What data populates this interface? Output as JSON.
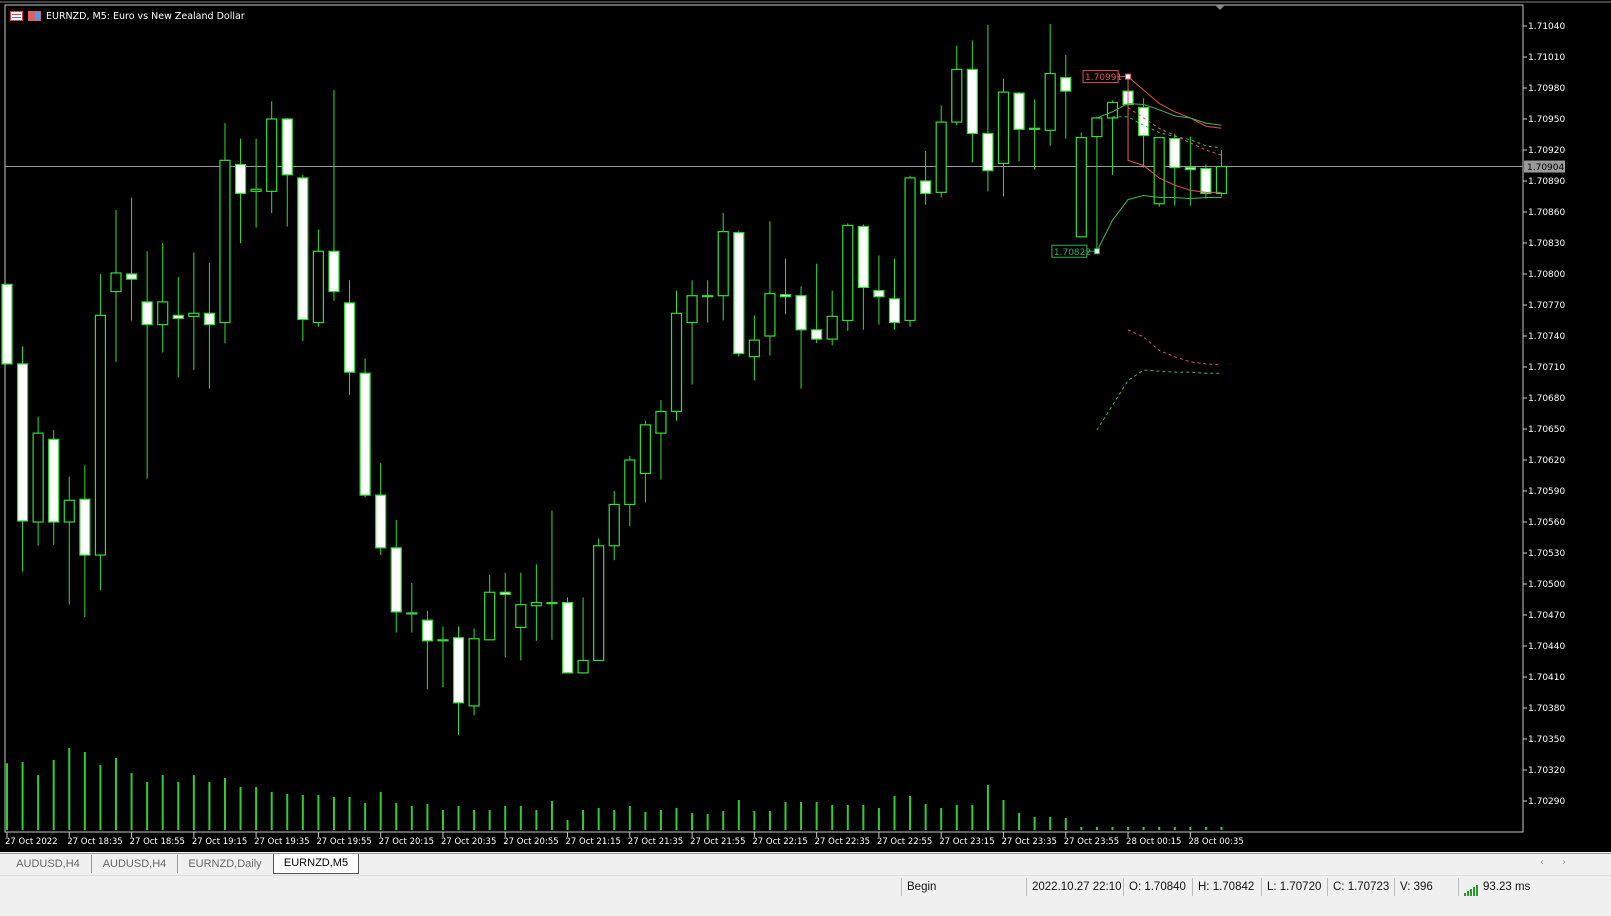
{
  "window": {
    "title": "EURNZD, M5:  Euro vs New Zealand Dollar",
    "icons": [
      "list-icon",
      "chart-icon"
    ]
  },
  "colors": {
    "background": "#000000",
    "candle": "#33dd33",
    "bear_fill": "#ffffff",
    "bull_fill": "#000000",
    "volume": "#33cc33",
    "bid_line": "#9a9a9a",
    "high_marker": "#e05555",
    "low_marker": "#2fae4f",
    "axis_text": "#ffffff"
  },
  "chart_data": {
    "type": "candlestick",
    "symbol": "EURNZD",
    "timeframe": "M5",
    "ylim": [
      1.7029,
      1.7104
    ],
    "y_ticks": [
      "1.71040",
      "1.71010",
      "1.70980",
      "1.70950",
      "1.70920",
      "1.70890",
      "1.70860",
      "1.70830",
      "1.70800",
      "1.70770",
      "1.70740",
      "1.70710",
      "1.70680",
      "1.70650",
      "1.70620",
      "1.70590",
      "1.70560",
      "1.70530",
      "1.70500",
      "1.70470",
      "1.70440",
      "1.70410",
      "1.70380",
      "1.70350",
      "1.70320",
      "1.70290"
    ],
    "x_ticks": [
      "27 Oct 2022",
      "27 Oct 18:35",
      "27 Oct 18:55",
      "27 Oct 19:15",
      "27 Oct 19:35",
      "27 Oct 19:55",
      "27 Oct 20:15",
      "27 Oct 20:35",
      "27 Oct 20:55",
      "27 Oct 21:15",
      "27 Oct 21:35",
      "27 Oct 21:55",
      "27 Oct 22:15",
      "27 Oct 22:35",
      "27 Oct 22:55",
      "27 Oct 23:15",
      "27 Oct 23:35",
      "27 Oct 23:55",
      "28 Oct 00:15",
      "28 Oct 00:35"
    ],
    "x_tick_every_bars": 4,
    "current_price": "1.70904",
    "ohlc": [
      [
        1.7079,
        1.7079,
        1.70713,
        1.70713
      ],
      [
        1.70713,
        1.7073,
        1.70512,
        1.70561
      ],
      [
        1.7056,
        1.70662,
        1.70537,
        1.70646
      ],
      [
        1.7064,
        1.70649,
        1.70538,
        1.7056
      ],
      [
        1.7056,
        1.70604,
        1.7048,
        1.70581
      ],
      [
        1.70582,
        1.70615,
        1.70468,
        1.70528
      ],
      [
        1.70528,
        1.708,
        1.70494,
        1.7076
      ],
      [
        1.70783,
        1.70862,
        1.70715,
        1.70801
      ],
      [
        1.708,
        1.70874,
        1.70755,
        1.70795
      ],
      [
        1.70773,
        1.70822,
        1.70602,
        1.70751
      ],
      [
        1.70751,
        1.7083,
        1.70724,
        1.70773
      ],
      [
        1.7076,
        1.70797,
        1.707,
        1.70757
      ],
      [
        1.70759,
        1.70821,
        1.70707,
        1.70762
      ],
      [
        1.70762,
        1.70811,
        1.70689,
        1.70751
      ],
      [
        1.70753,
        1.70946,
        1.70733,
        1.7091
      ],
      [
        1.70906,
        1.70931,
        1.7083,
        1.70878
      ],
      [
        1.7088,
        1.70931,
        1.70845,
        1.70882
      ],
      [
        1.7088,
        1.70967,
        1.70859,
        1.7095
      ],
      [
        1.7095,
        1.70951,
        1.70846,
        1.70896
      ],
      [
        1.70893,
        1.70896,
        1.70735,
        1.70756
      ],
      [
        1.70753,
        1.70843,
        1.70749,
        1.70822
      ],
      [
        1.70822,
        1.70978,
        1.70774,
        1.70783
      ],
      [
        1.70772,
        1.70794,
        1.70683,
        1.70705
      ],
      [
        1.70704,
        1.70718,
        1.70584,
        1.70586
      ],
      [
        1.70586,
        1.70617,
        1.70528,
        1.70535
      ],
      [
        1.70535,
        1.70562,
        1.70453,
        1.70473
      ],
      [
        1.70472,
        1.70501,
        1.70453,
        1.70472
      ],
      [
        1.70465,
        1.70474,
        1.70398,
        1.70445
      ],
      [
        1.70446,
        1.70459,
        1.704,
        1.70445
      ],
      [
        1.70448,
        1.70459,
        1.70354,
        1.70385
      ],
      [
        1.70382,
        1.70457,
        1.70373,
        1.70447
      ],
      [
        1.70446,
        1.70509,
        1.70446,
        1.70492
      ],
      [
        1.70492,
        1.70511,
        1.70429,
        1.7049
      ],
      [
        1.70458,
        1.70511,
        1.70426,
        1.7048
      ],
      [
        1.70479,
        1.70519,
        1.70445,
        1.70482
      ],
      [
        1.70482,
        1.70571,
        1.70446,
        1.70482
      ],
      [
        1.70482,
        1.70487,
        1.70414,
        1.70414
      ],
      [
        1.70414,
        1.70487,
        1.70414,
        1.70426
      ],
      [
        1.70426,
        1.70544,
        1.70426,
        1.70537
      ],
      [
        1.70537,
        1.7059,
        1.70523,
        1.70577
      ],
      [
        1.70577,
        1.70624,
        1.70556,
        1.7062
      ],
      [
        1.70607,
        1.70658,
        1.70579,
        1.70654
      ],
      [
        1.70646,
        1.70678,
        1.70601,
        1.70667
      ],
      [
        1.70667,
        1.70784,
        1.70658,
        1.70762
      ],
      [
        1.70753,
        1.70794,
        1.70693,
        1.70779
      ],
      [
        1.70779,
        1.70794,
        1.70753,
        1.70779
      ],
      [
        1.70779,
        1.70859,
        1.70755,
        1.70841
      ],
      [
        1.7084,
        1.70842,
        1.7072,
        1.70723
      ],
      [
        1.7072,
        1.7076,
        1.70697,
        1.70736
      ],
      [
        1.7074,
        1.70851,
        1.70721,
        1.70781
      ],
      [
        1.7078,
        1.70815,
        1.70761,
        1.70778
      ],
      [
        1.70779,
        1.70788,
        1.70689,
        1.70746
      ],
      [
        1.70746,
        1.7081,
        1.70733,
        1.70737
      ],
      [
        1.70737,
        1.70784,
        1.70731,
        1.70759
      ],
      [
        1.70755,
        1.70849,
        1.70745,
        1.70847
      ],
      [
        1.70846,
        1.70848,
        1.70746,
        1.70787
      ],
      [
        1.70784,
        1.70818,
        1.70751,
        1.70778
      ],
      [
        1.70776,
        1.70815,
        1.70746,
        1.70753
      ],
      [
        1.70755,
        1.70895,
        1.70749,
        1.70893
      ],
      [
        1.7089,
        1.70919,
        1.70867,
        1.70878
      ],
      [
        1.70879,
        1.70963,
        1.70874,
        1.70947
      ],
      [
        1.70947,
        1.71021,
        1.70944,
        1.70998
      ],
      [
        1.70998,
        1.71026,
        1.70908,
        1.70936
      ],
      [
        1.70936,
        1.71041,
        1.7088,
        1.709
      ],
      [
        1.70907,
        1.70989,
        1.70875,
        1.70976
      ],
      [
        1.70975,
        1.70976,
        1.70909,
        1.7094
      ],
      [
        1.70941,
        1.70969,
        1.70901,
        1.7094
      ],
      [
        1.70939,
        1.71042,
        1.70924,
        1.70994
      ],
      [
        1.7099,
        1.71012,
        1.70931,
        1.70977
      ],
      [
        1.70836,
        1.70937,
        1.70836,
        1.70932
      ],
      [
        1.70933,
        1.70952,
        1.70821,
        1.70951
      ],
      [
        1.70951,
        1.70968,
        1.70896,
        1.70966
      ],
      [
        1.70977,
        1.70991,
        1.7091,
        1.70964
      ],
      [
        1.70961,
        1.7097,
        1.70903,
        1.70934
      ],
      [
        1.70868,
        1.70932,
        1.70865,
        1.70932
      ],
      [
        1.70931,
        1.70936,
        1.70866,
        1.70903
      ],
      [
        1.70903,
        1.70933,
        1.70866,
        1.70901
      ],
      [
        1.70902,
        1.70906,
        1.70873,
        1.70878
      ],
      [
        1.70878,
        1.7092,
        1.70875,
        1.70904
      ]
    ],
    "volume": [
      880,
      898,
      726,
      924,
      1082,
      1030,
      858,
      950,
      752,
      634,
      726,
      634,
      726,
      634,
      686,
      568,
      568,
      502,
      475,
      462,
      462,
      436,
      436,
      356,
      502,
      356,
      317,
      343,
      264,
      317,
      264,
      264,
      317,
      317,
      264,
      383,
      132,
      264,
      290,
      264,
      317,
      238,
      264,
      290,
      224,
      211,
      251,
      396,
      251,
      251,
      370,
      370,
      370,
      330,
      330,
      330,
      290,
      449,
      449,
      343,
      290,
      330,
      330,
      594,
      396,
      224,
      172,
      172,
      158,
      40,
      40,
      40,
      40,
      40,
      40,
      40,
      40,
      40,
      40
    ],
    "markers": [
      {
        "label": "1.70991",
        "bar": 72,
        "price": 1.70991,
        "color": "#e05555"
      },
      {
        "label": "1.70822",
        "bar": 70,
        "price": 1.70822,
        "color": "#2fae4f"
      }
    ],
    "lines": [
      {
        "color": "#e05555",
        "dashed": false,
        "points": [
          [
            72,
            1.70991
          ],
          [
            73,
            1.70978
          ],
          [
            74,
            1.70965
          ],
          [
            75,
            1.70957
          ],
          [
            76,
            1.70951
          ],
          [
            77,
            1.70943
          ],
          [
            78,
            1.70941
          ]
        ]
      },
      {
        "color": "#e05555",
        "dashed": false,
        "points": [
          [
            72,
            1.70991
          ],
          [
            72,
            1.7091
          ],
          [
            73,
            1.70905
          ],
          [
            74,
            1.70893
          ],
          [
            75,
            1.70886
          ],
          [
            76,
            1.70881
          ],
          [
            77,
            1.70879
          ],
          [
            78,
            1.70879
          ]
        ]
      },
      {
        "color": "#3cb84c",
        "dashed": false,
        "points": [
          [
            70,
            1.70951
          ],
          [
            71,
            1.70957
          ],
          [
            72,
            1.70965
          ],
          [
            73,
            1.70964
          ],
          [
            74,
            1.70959
          ],
          [
            75,
            1.70953
          ],
          [
            76,
            1.70951
          ],
          [
            77,
            1.70946
          ],
          [
            78,
            1.70944
          ]
        ]
      },
      {
        "color": "#3cb84c",
        "dashed": false,
        "points": [
          [
            70,
            1.70822
          ],
          [
            71,
            1.70852
          ],
          [
            72,
            1.70872
          ],
          [
            73,
            1.70876
          ],
          [
            74,
            1.70874
          ],
          [
            75,
            1.70874
          ],
          [
            76,
            1.70873
          ],
          [
            77,
            1.70874
          ],
          [
            78,
            1.70874
          ]
        ]
      },
      {
        "color": "#3cb84c",
        "dashed": true,
        "points": [
          [
            71,
            1.70952
          ],
          [
            72,
            1.70952
          ],
          [
            73,
            1.70944
          ],
          [
            74,
            1.70937
          ],
          [
            75,
            1.70933
          ],
          [
            76,
            1.7093
          ],
          [
            77,
            1.70924
          ],
          [
            78,
            1.70922
          ]
        ]
      },
      {
        "color": "#e05555",
        "dashed": true,
        "points": [
          [
            72,
            1.70961
          ],
          [
            73,
            1.70951
          ],
          [
            74,
            1.70941
          ],
          [
            75,
            1.70934
          ],
          [
            76,
            1.70927
          ],
          [
            77,
            1.7092
          ],
          [
            78,
            1.70915
          ]
        ]
      },
      {
        "color": "#e05555",
        "dashed": true,
        "points": [
          [
            72,
            1.70746
          ],
          [
            73,
            1.70739
          ],
          [
            74,
            1.70726
          ],
          [
            75,
            1.7072
          ],
          [
            76,
            1.70715
          ],
          [
            77,
            1.70713
          ],
          [
            78,
            1.70712
          ]
        ]
      },
      {
        "color": "#3cb84c",
        "dashed": true,
        "points": [
          [
            70,
            1.70649
          ],
          [
            71,
            1.70673
          ],
          [
            72,
            1.70697
          ],
          [
            73,
            1.70707
          ],
          [
            74,
            1.70706
          ],
          [
            75,
            1.70705
          ],
          [
            76,
            1.70705
          ],
          [
            77,
            1.70704
          ],
          [
            78,
            1.70704
          ]
        ]
      }
    ]
  },
  "tabs": [
    {
      "label": "AUDUSD,H4",
      "active": false
    },
    {
      "label": "AUDUSD,H4",
      "active": false
    },
    {
      "label": "EURNZD,Daily",
      "active": false
    },
    {
      "label": "EURNZD,M5",
      "active": true
    }
  ],
  "status": {
    "mode": "Begin",
    "datetime": "2022.10.27 22:10",
    "open": "O: 1.70840",
    "high": "H: 1.70842",
    "low": "L: 1.70720",
    "close": "C: 1.70723",
    "volume": "V: 396",
    "ping": "93.23 ms",
    "ping_icon": "signal-strength-icon"
  }
}
